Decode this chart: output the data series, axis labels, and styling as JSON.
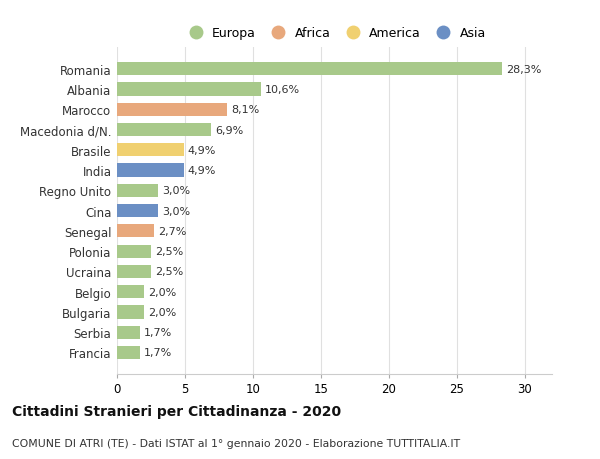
{
  "countries": [
    "Romania",
    "Albania",
    "Marocco",
    "Macedonia d/N.",
    "Brasile",
    "India",
    "Regno Unito",
    "Cina",
    "Senegal",
    "Polonia",
    "Ucraina",
    "Belgio",
    "Bulgaria",
    "Serbia",
    "Francia"
  ],
  "values": [
    28.3,
    10.6,
    8.1,
    6.9,
    4.9,
    4.9,
    3.0,
    3.0,
    2.7,
    2.5,
    2.5,
    2.0,
    2.0,
    1.7,
    1.7
  ],
  "labels": [
    "28,3%",
    "10,6%",
    "8,1%",
    "6,9%",
    "4,9%",
    "4,9%",
    "3,0%",
    "3,0%",
    "2,7%",
    "2,5%",
    "2,5%",
    "2,0%",
    "2,0%",
    "1,7%",
    "1,7%"
  ],
  "colors": [
    "#a8c98a",
    "#a8c98a",
    "#e8a87c",
    "#a8c98a",
    "#f0d070",
    "#6b8fc4",
    "#a8c98a",
    "#6b8fc4",
    "#e8a87c",
    "#a8c98a",
    "#a8c98a",
    "#a8c98a",
    "#a8c98a",
    "#a8c98a",
    "#a8c98a"
  ],
  "legend_labels": [
    "Europa",
    "Africa",
    "America",
    "Asia"
  ],
  "legend_colors": [
    "#a8c98a",
    "#e8a87c",
    "#f0d070",
    "#6b8fc4"
  ],
  "title": "Cittadini Stranieri per Cittadinanza - 2020",
  "subtitle": "COMUNE DI ATRI (TE) - Dati ISTAT al 1° gennaio 2020 - Elaborazione TUTTITALIA.IT",
  "xlim": [
    0,
    32
  ],
  "xticks": [
    0,
    5,
    10,
    15,
    20,
    25,
    30
  ],
  "bg_color": "#ffffff",
  "plot_bg_color": "#ffffff",
  "grid_color": "#e0e0e0"
}
